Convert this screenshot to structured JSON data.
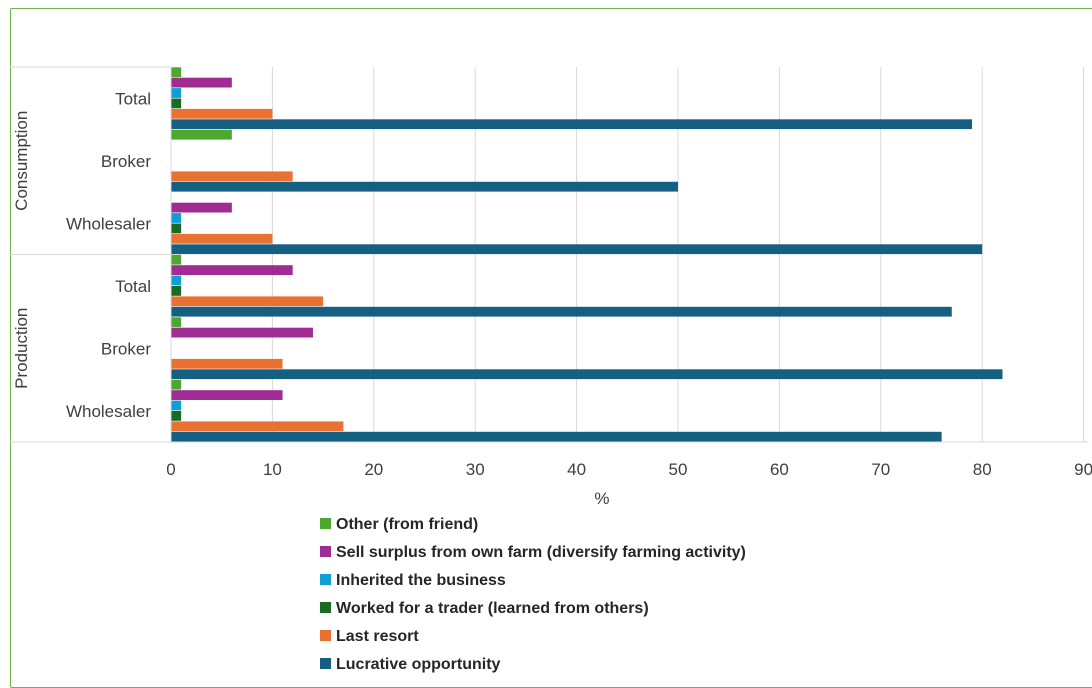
{
  "chart_data": {
    "type": "bar",
    "orientation": "horizontal",
    "xlabel": "%",
    "xlim": [
      0,
      90
    ],
    "xticks": [
      0,
      10,
      20,
      30,
      40,
      50,
      60,
      70,
      80,
      90
    ],
    "grid": true,
    "legend_position": "bottom",
    "groups": [
      {
        "name": "Consumption",
        "categories": [
          "Total",
          "Broker",
          "Wholesaler"
        ]
      },
      {
        "name": "Production",
        "categories": [
          "Total",
          "Broker",
          "Wholesaler"
        ]
      }
    ],
    "categories": [
      "Consumption - Total",
      "Consumption - Broker",
      "Consumption - Wholesaler",
      "Production - Total",
      "Production - Broker",
      "Production - Wholesaler"
    ],
    "series": [
      {
        "name": "Other (from friend)",
        "color": "#4ea72e",
        "values": [
          1,
          6,
          0,
          1,
          1,
          1
        ]
      },
      {
        "name": "Sell surplus from own farm (diversify farming activity)",
        "color": "#a02b93",
        "values": [
          6,
          0,
          6,
          12,
          14,
          11
        ]
      },
      {
        "name": "Inherited the business",
        "color": "#0f9ed5",
        "values": [
          1,
          0,
          1,
          1,
          0,
          1
        ]
      },
      {
        "name": "Worked for a trader (learned from others)",
        "color": "#196b24",
        "values": [
          1,
          0,
          1,
          1,
          0,
          1
        ]
      },
      {
        "name": "Last resort",
        "color": "#e97132",
        "values": [
          10,
          12,
          10,
          15,
          11,
          17
        ]
      },
      {
        "name": "Lucrative opportunity",
        "color": "#156082",
        "values": [
          79,
          50,
          80,
          77,
          82,
          76
        ]
      }
    ]
  }
}
